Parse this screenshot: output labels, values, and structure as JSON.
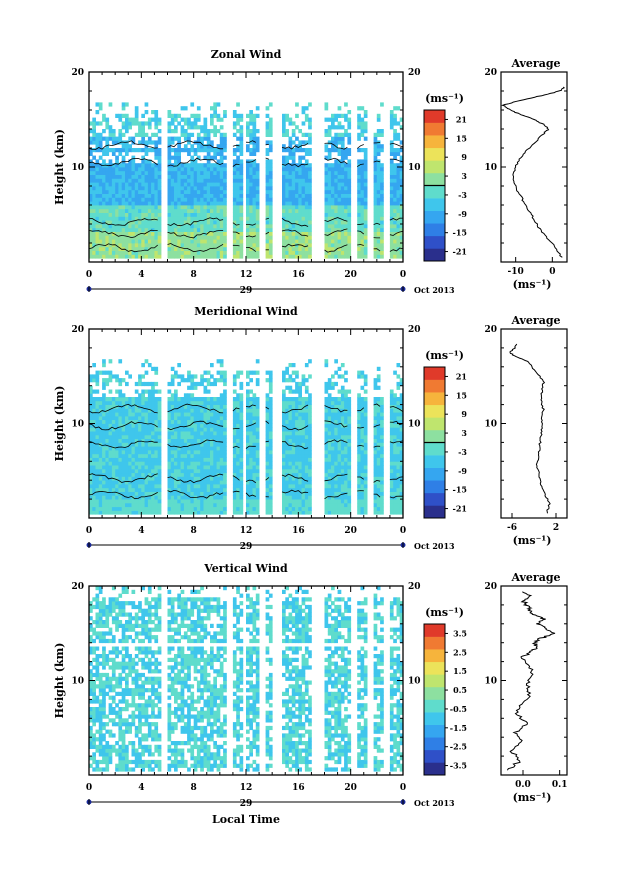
{
  "chart_data": [
    {
      "type": "heatmap",
      "title": "Zonal Wind",
      "ylabel": "Height (km)",
      "xlabel": "",
      "ylim": [
        0,
        20
      ],
      "yticks": [
        "10",
        "20"
      ],
      "xticks": [
        "0",
        "4",
        "8",
        "12",
        "16",
        "20",
        "0"
      ],
      "date_day": "29",
      "date_label": "Oct 2013",
      "colorbar_unit": "(ms⁻¹)",
      "colorbar_ticks": [
        "21",
        "15",
        "9",
        "3",
        "-3",
        "-9",
        "-15",
        "-21"
      ],
      "colorbar_range": [
        -24,
        24
      ],
      "profile_title": "Average",
      "profile_xticks": [
        "-10",
        "0"
      ],
      "profile_unit": "(ms⁻¹)",
      "profile_xlim": [
        -14,
        4
      ],
      "profile": [
        {
          "h": 0.5,
          "v": 2.5
        },
        {
          "h": 1.5,
          "v": 1.0
        },
        {
          "h": 2.5,
          "v": -1.5
        },
        {
          "h": 3.5,
          "v": -3.5
        },
        {
          "h": 4.5,
          "v": -5.0
        },
        {
          "h": 5.5,
          "v": -6.5
        },
        {
          "h": 6.5,
          "v": -8.0
        },
        {
          "h": 7.5,
          "v": -9.5
        },
        {
          "h": 8.5,
          "v": -10.5
        },
        {
          "h": 9.5,
          "v": -10.5
        },
        {
          "h": 10.5,
          "v": -9.5
        },
        {
          "h": 11.5,
          "v": -7.5
        },
        {
          "h": 12.5,
          "v": -5.0
        },
        {
          "h": 13.5,
          "v": -2.5
        },
        {
          "h": 14.0,
          "v": -1.0
        },
        {
          "h": 14.5,
          "v": -2.5
        },
        {
          "h": 15.0,
          "v": -5.0
        },
        {
          "h": 15.5,
          "v": -8.5
        },
        {
          "h": 16.0,
          "v": -11.5
        },
        {
          "h": 16.5,
          "v": -13.5
        },
        {
          "h": 17.0,
          "v": -9.0
        },
        {
          "h": 17.5,
          "v": -3.0
        },
        {
          "h": 18.0,
          "v": 2.0
        },
        {
          "h": 18.5,
          "v": 3.5
        }
      ]
    },
    {
      "type": "heatmap",
      "title": "Meridional Wind",
      "ylabel": "Height (km)",
      "xlabel": "",
      "ylim": [
        0,
        20
      ],
      "yticks": [
        "10",
        "20"
      ],
      "xticks": [
        "0",
        "4",
        "8",
        "12",
        "16",
        "20",
        "0"
      ],
      "date_day": "29",
      "date_label": "Oct 2013",
      "colorbar_unit": "(ms⁻¹)",
      "colorbar_ticks": [
        "21",
        "15",
        "9",
        "3",
        "-3",
        "-9",
        "-15",
        "-21"
      ],
      "colorbar_range": [
        -24,
        24
      ],
      "profile_title": "Average",
      "profile_xticks": [
        "-6",
        "2"
      ],
      "profile_unit": "(ms⁻¹)",
      "profile_xlim": [
        -8,
        4
      ],
      "profile": [
        {
          "h": 0.5,
          "v": 0.3
        },
        {
          "h": 1.5,
          "v": 0.8
        },
        {
          "h": 2.5,
          "v": 0.0
        },
        {
          "h": 3.5,
          "v": -0.8
        },
        {
          "h": 4.5,
          "v": -1.0
        },
        {
          "h": 5.5,
          "v": -1.5
        },
        {
          "h": 6.5,
          "v": -1.2
        },
        {
          "h": 7.5,
          "v": -1.0
        },
        {
          "h": 8.5,
          "v": -0.8
        },
        {
          "h": 9.5,
          "v": -0.5
        },
        {
          "h": 10.5,
          "v": -0.6
        },
        {
          "h": 11.5,
          "v": -0.3
        },
        {
          "h": 12.5,
          "v": -0.8
        },
        {
          "h": 13.5,
          "v": -0.5
        },
        {
          "h": 14.5,
          "v": -0.2
        },
        {
          "h": 15.5,
          "v": -1.8
        },
        {
          "h": 16.5,
          "v": -3.0
        },
        {
          "h": 17.0,
          "v": -5.0
        },
        {
          "h": 17.5,
          "v": -6.5
        },
        {
          "h": 18.0,
          "v": -5.5
        },
        {
          "h": 18.5,
          "v": -5.0
        }
      ]
    },
    {
      "type": "heatmap",
      "title": "Vertical Wind",
      "ylabel": "Height (km)",
      "xlabel": "Local Time",
      "ylim": [
        0,
        20
      ],
      "yticks": [
        "10",
        "20"
      ],
      "xticks": [
        "0",
        "4",
        "8",
        "12",
        "16",
        "20",
        "0"
      ],
      "date_day": "29",
      "date_label": "Oct 2013",
      "colorbar_unit": "(ms⁻¹)",
      "colorbar_ticks": [
        "3.5",
        "2.5",
        "1.5",
        "0.5",
        "-0.5",
        "-1.5",
        "-2.5",
        "-3.5"
      ],
      "colorbar_range": [
        -4,
        4
      ],
      "profile_title": "Average",
      "profile_xticks": [
        "0.0",
        "0.1"
      ],
      "profile_unit": "(ms⁻¹)",
      "profile_xlim": [
        -0.06,
        0.12
      ],
      "profile": [
        {
          "h": 0.5,
          "v": -0.04
        },
        {
          "h": 1.5,
          "v": -0.01
        },
        {
          "h": 2.5,
          "v": -0.03
        },
        {
          "h": 3.5,
          "v": 0.0
        },
        {
          "h": 4.5,
          "v": -0.02
        },
        {
          "h": 5.5,
          "v": 0.01
        },
        {
          "h": 6.5,
          "v": -0.02
        },
        {
          "h": 7.5,
          "v": 0.0
        },
        {
          "h": 8.5,
          "v": 0.02
        },
        {
          "h": 9.5,
          "v": 0.01
        },
        {
          "h": 10.5,
          "v": 0.03
        },
        {
          "h": 11.5,
          "v": 0.02
        },
        {
          "h": 12.5,
          "v": 0.0
        },
        {
          "h": 13.0,
          "v": 0.02
        },
        {
          "h": 13.5,
          "v": 0.04
        },
        {
          "h": 14.0,
          "v": 0.03
        },
        {
          "h": 14.5,
          "v": 0.05
        },
        {
          "h": 15.0,
          "v": 0.09
        },
        {
          "h": 15.5,
          "v": 0.06
        },
        {
          "h": 16.0,
          "v": 0.04
        },
        {
          "h": 16.5,
          "v": 0.06
        },
        {
          "h": 17.0,
          "v": 0.03
        },
        {
          "h": 17.5,
          "v": 0.02
        },
        {
          "h": 18.0,
          "v": 0.01
        },
        {
          "h": 18.5,
          "v": 0.0
        },
        {
          "h": 19.0,
          "v": 0.02
        },
        {
          "h": 19.5,
          "v": 0.0
        }
      ]
    }
  ]
}
